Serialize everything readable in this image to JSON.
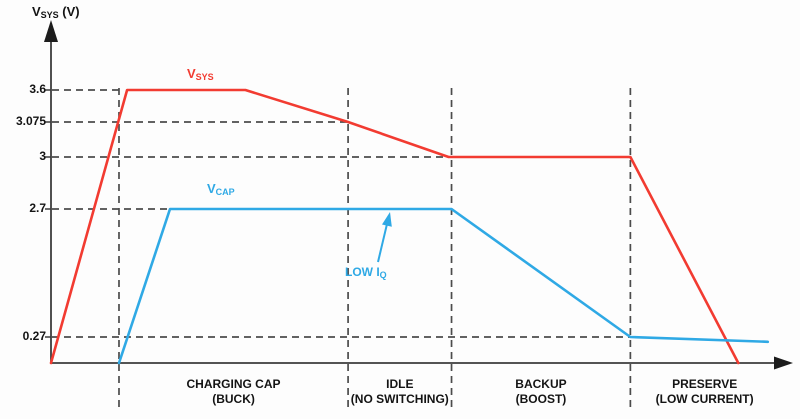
{
  "chart_data": {
    "type": "line",
    "title": "",
    "y_axis_title_parts": {
      "prefix": "V",
      "sub": "SYS",
      "suffix": " (V)"
    },
    "y_axis_note": "schematic not-to-scale voltage axis",
    "y_ticks": [
      {
        "label": "3.6",
        "value": 3.6,
        "guide_extends_to_pct": 9.2
      },
      {
        "label": "3.075",
        "value": 3.075,
        "guide_extends_to_pct": 40.2
      },
      {
        "label": "3",
        "value": 3,
        "guide_extends_to_pct": 53.8
      },
      {
        "label": "2.7",
        "value": 2.7,
        "guide_extends_to_pct": 16.1
      },
      {
        "label": "0.27",
        "value": 0.27,
        "guide_extends_to_pct": 78.4
      }
    ],
    "x_phases": [
      {
        "line1": "CHARGING CAP",
        "line2": "(BUCK)",
        "start_pct": 9.2,
        "end_pct": 40.2
      },
      {
        "line1": "IDLE",
        "line2": "(NO SWITCHING)",
        "start_pct": 40.2,
        "end_pct": 54.2
      },
      {
        "line1": "BACKUP",
        "line2": "(BOOST)",
        "start_pct": 54.2,
        "end_pct": 78.4
      },
      {
        "line1": "PRESERVE",
        "line2": "(LOW CURRENT)",
        "start_pct": 78.4,
        "end_pct": 98.5
      }
    ],
    "series": [
      {
        "name": "VSYS",
        "label_parts": {
          "prefix": "V",
          "sub": "SYS"
        },
        "color": "#f23b31",
        "points": [
          [
            0,
            0
          ],
          [
            10.3,
            3.6
          ],
          [
            26.3,
            3.6
          ],
          [
            40.2,
            3.075
          ],
          [
            53.8,
            3
          ],
          [
            78.4,
            3
          ],
          [
            93,
            0
          ]
        ]
      },
      {
        "name": "VCAP",
        "label_parts": {
          "prefix": "V",
          "sub": "CAP"
        },
        "color": "#2fa9e5",
        "points": [
          [
            9.2,
            0
          ],
          [
            16.1,
            2.7
          ],
          [
            54.2,
            2.7
          ],
          [
            78.4,
            0.27
          ],
          [
            97,
            0.22
          ]
        ]
      }
    ],
    "annotation": {
      "text_parts": {
        "prefix": "LOW I",
        "sub": "Q"
      },
      "points_to_series": "VCAP"
    },
    "colors": {
      "vsys": "#f23b31",
      "vcap": "#2fa9e5",
      "grid": "#4c4c4c",
      "axis": "#3c3c3c",
      "text": "#141414"
    }
  }
}
